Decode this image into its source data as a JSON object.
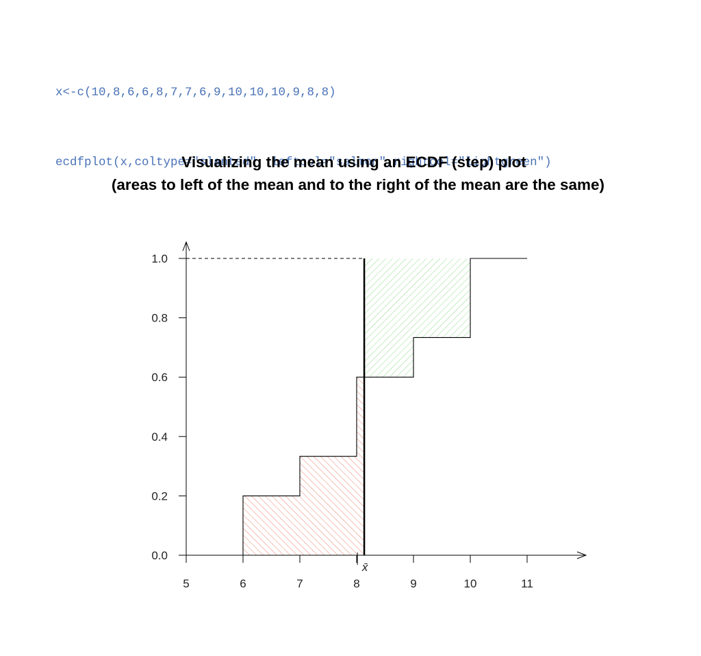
{
  "code": {
    "lines": [
      "x<-c(10,8,6,6,8,7,7,6,9,10,10,10,9,8,8)",
      "ecdfplot(x,coltype=\"slanted\", leftcol=\"salmon\",rightcol=\"lightgreen\")"
    ]
  },
  "chart_data": {
    "type": "line",
    "title": "Visualizing the mean using an ECDF (step) plot",
    "subtitle": "(areas to left of the mean and to the right of the mean are the same)",
    "xlabel": "",
    "ylabel": "",
    "xlim": [
      5,
      11
    ],
    "ylim": [
      0,
      1
    ],
    "x_ticks": [
      "5",
      "6",
      "7",
      "8",
      "9",
      "10",
      "11"
    ],
    "y_ticks": [
      "0.0",
      "0.2",
      "0.4",
      "0.6",
      "0.8",
      "1.0"
    ],
    "mean": 8.1333,
    "mean_label": "x̄",
    "ecdf_steps": [
      {
        "x": 6,
        "y": 0.2
      },
      {
        "x": 7,
        "y": 0.3333
      },
      {
        "x": 8,
        "y": 0.6
      },
      {
        "x": 9,
        "y": 0.7333
      },
      {
        "x": 10,
        "y": 1.0
      }
    ],
    "left_fill": "#fa8072",
    "right_fill": "#90ee90",
    "grid": false,
    "legend": "none"
  }
}
